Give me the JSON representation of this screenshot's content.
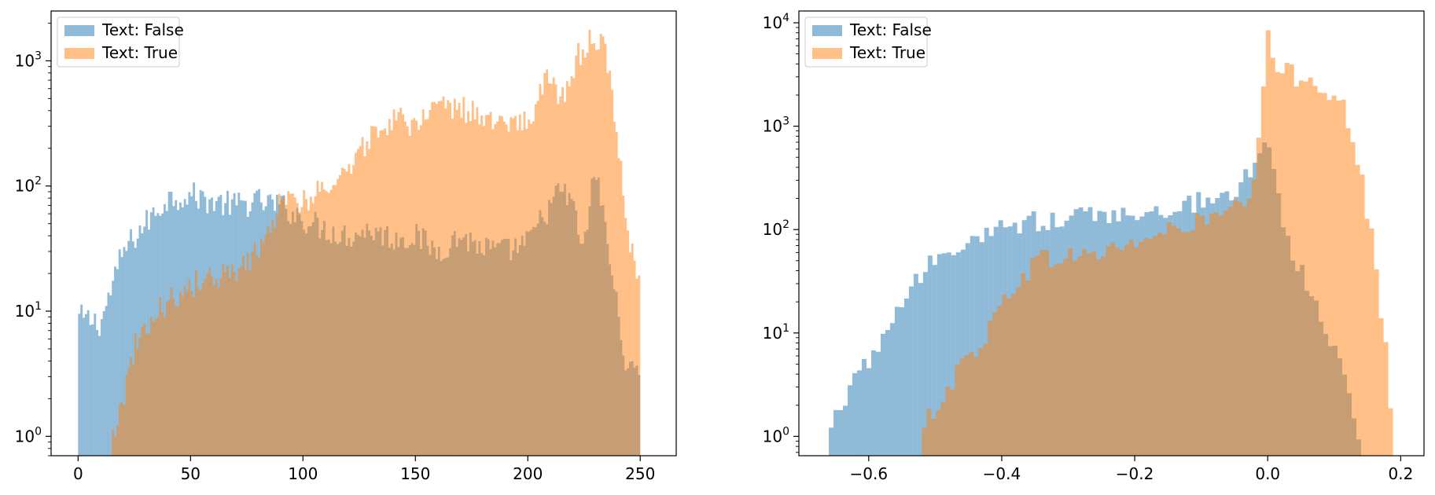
{
  "colors": {
    "series_false": "#1f77b4",
    "series_true": "#ff7f0e",
    "axis": "#000000",
    "legend_border": "#cccccc"
  },
  "chart_data": [
    {
      "type": "histogram",
      "title": "",
      "xlabel": "",
      "ylabel": "",
      "yscale": "log",
      "xlim": [
        -12,
        266
      ],
      "ylim": [
        0.7,
        2500
      ],
      "xticks": [
        0,
        50,
        100,
        150,
        200,
        250
      ],
      "xtick_labels": [
        "0",
        "50",
        "100",
        "150",
        "200",
        "250"
      ],
      "yticks": [
        1,
        10,
        100,
        1000
      ],
      "ytick_labels": [
        {
          "base": "10",
          "exp": "0"
        },
        {
          "base": "10",
          "exp": "1"
        },
        {
          "base": "10",
          "exp": "2"
        },
        {
          "base": "10",
          "exp": "3"
        }
      ],
      "grid": false,
      "legend_position": "top-left",
      "legend": [
        "Text: False",
        "Text: True"
      ],
      "series": [
        {
          "name": "Text: False",
          "color": "#1f77b4",
          "alpha": 0.5,
          "x": [
            0,
            10,
            20,
            30,
            40,
            50,
            60,
            70,
            80,
            90,
            100,
            110,
            120,
            130,
            140,
            150,
            160,
            170,
            180,
            190,
            200,
            205,
            210,
            215,
            220,
            225,
            230,
            235,
            240,
            245,
            250
          ],
          "y": [
            9,
            8,
            30,
            50,
            80,
            85,
            75,
            70,
            75,
            70,
            55,
            45,
            40,
            45,
            38,
            40,
            30,
            40,
            32,
            30,
            35,
            50,
            70,
            95,
            70,
            30,
            150,
            40,
            10,
            3,
            4
          ]
        },
        {
          "name": "Text: True",
          "color": "#ff7f0e",
          "alpha": 0.5,
          "x": [
            15,
            20,
            25,
            30,
            40,
            50,
            60,
            70,
            80,
            90,
            100,
            110,
            120,
            130,
            140,
            150,
            160,
            170,
            180,
            190,
            200,
            205,
            210,
            215,
            220,
            225,
            230,
            235,
            240,
            245,
            250
          ],
          "y": [
            1,
            2,
            5,
            8,
            12,
            16,
            18,
            20,
            30,
            75,
            80,
            90,
            140,
            250,
            350,
            300,
            400,
            420,
            350,
            300,
            330,
            500,
            800,
            500,
            900,
            1300,
            1500,
            1200,
            200,
            40,
            15
          ]
        }
      ]
    },
    {
      "type": "histogram",
      "title": "",
      "xlabel": "",
      "ylabel": "",
      "yscale": "log",
      "xlim": [
        -0.705,
        0.235
      ],
      "ylim": [
        0.65,
        13000
      ],
      "xticks": [
        -0.6,
        -0.4,
        -0.2,
        0.0,
        0.2
      ],
      "xtick_labels": [
        "−0.6",
        "−0.4",
        "−0.2",
        "0.0",
        "0.2"
      ],
      "yticks": [
        1,
        10,
        100,
        1000,
        10000
      ],
      "ytick_labels": [
        {
          "base": "10",
          "exp": "0"
        },
        {
          "base": "10",
          "exp": "1"
        },
        {
          "base": "10",
          "exp": "2"
        },
        {
          "base": "10",
          "exp": "3"
        },
        {
          "base": "10",
          "exp": "4"
        }
      ],
      "grid": false,
      "legend_position": "top-left",
      "legend": [
        "Text: False",
        "Text: True"
      ],
      "series": [
        {
          "name": "Text: False",
          "color": "#1f77b4",
          "alpha": 0.5,
          "x": [
            -0.66,
            -0.63,
            -0.6,
            -0.58,
            -0.55,
            -0.52,
            -0.5,
            -0.48,
            -0.45,
            -0.42,
            -0.4,
            -0.35,
            -0.3,
            -0.25,
            -0.2,
            -0.15,
            -0.1,
            -0.05,
            -0.02,
            0.0,
            0.02,
            0.05,
            0.08,
            0.1,
            0.12,
            0.14
          ],
          "y": [
            1,
            3,
            5,
            10,
            20,
            35,
            50,
            60,
            70,
            90,
            110,
            120,
            130,
            140,
            150,
            160,
            190,
            220,
            400,
            1000,
            120,
            40,
            15,
            8,
            3,
            1
          ]
        },
        {
          "name": "Text: True",
          "color": "#ff7f0e",
          "alpha": 0.5,
          "x": [
            -0.52,
            -0.5,
            -0.48,
            -0.45,
            -0.42,
            -0.4,
            -0.37,
            -0.35,
            -0.3,
            -0.25,
            -0.2,
            -0.15,
            -0.1,
            -0.05,
            -0.02,
            0.0,
            0.01,
            0.03,
            0.05,
            0.08,
            0.1,
            0.12,
            0.14,
            0.16,
            0.18,
            0.19
          ],
          "y": [
            1,
            2,
            3,
            6,
            10,
            20,
            35,
            50,
            55,
            60,
            75,
            95,
            120,
            150,
            250,
            7000,
            4000,
            3300,
            3000,
            2600,
            2100,
            1200,
            350,
            60,
            5,
            1
          ]
        }
      ]
    }
  ]
}
